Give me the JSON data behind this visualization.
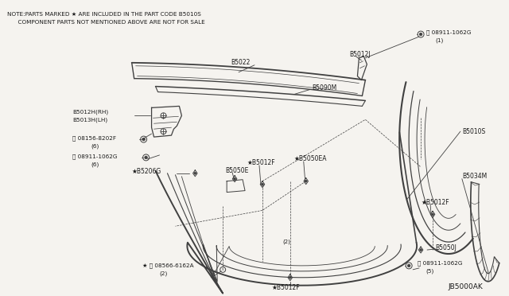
{
  "bg_color": "#f5f3ef",
  "line_color": "#404040",
  "text_color": "#1a1a1a",
  "title_line1": "NOTE:PARTS MARKED ★ ARE INCLUDED IN THE PART CODE B5010S",
  "title_line2": "      COMPONENT PARTS NOT MENTIONED ABOVE ARE NOT FOR SALE",
  "diagram_id": "JB5000AK"
}
